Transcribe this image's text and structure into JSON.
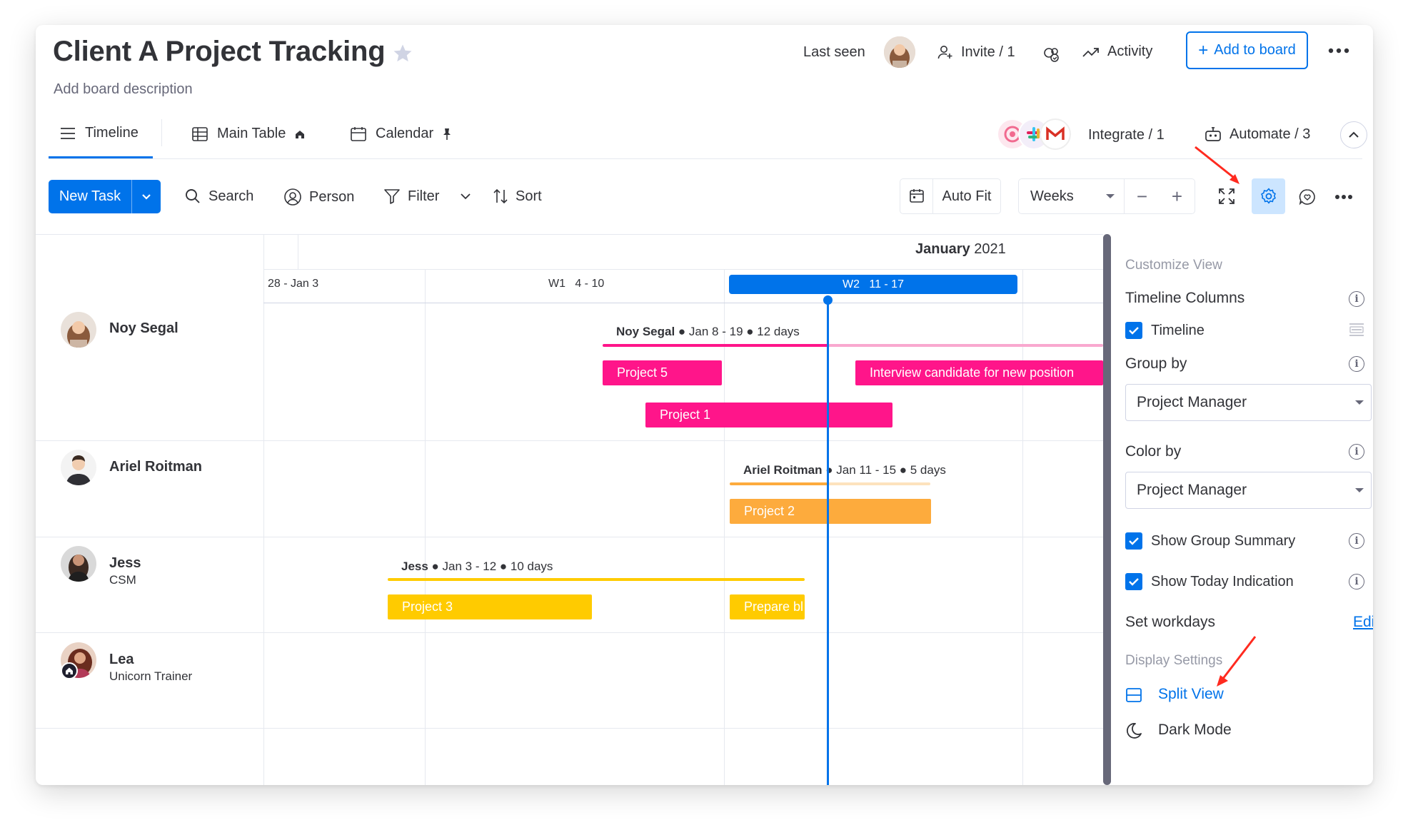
{
  "board": {
    "title": "Client A Project Tracking",
    "description": "Add board description"
  },
  "header": {
    "last_seen_label": "Last seen",
    "invite_label": "Invite / 1",
    "activity_label": "Activity",
    "add_to_board_label": "Add to board"
  },
  "tabs": [
    {
      "label": "Timeline",
      "active": true
    },
    {
      "label": "Main Table",
      "active": false
    },
    {
      "label": "Calendar",
      "active": false
    }
  ],
  "integrations": {
    "integrate_label": "Integrate / 1",
    "automate_label": "Automate / 3"
  },
  "toolbar": {
    "new_task_label": "New Task",
    "search_label": "Search",
    "person_label": "Person",
    "filter_label": "Filter",
    "sort_label": "Sort",
    "auto_fit_label": "Auto Fit",
    "scale_value": "Weeks",
    "zoom_out": "−",
    "zoom_in": "+"
  },
  "timeline": {
    "month_label": "January",
    "year_label": "2021",
    "weeks": [
      {
        "label": "28 - Jan 3",
        "current": false
      },
      {
        "label": "W1   4 - 10",
        "current": false
      },
      {
        "label": "W2   11 - 17",
        "current": true
      }
    ],
    "groups": [
      {
        "name": "Noy Segal",
        "role": "",
        "summary": {
          "name": "Noy Segal",
          "details": " ● Jan 8 - 19 ● 12 days"
        },
        "items": [
          {
            "label": "Project 5"
          },
          {
            "label": "Interview candidate for new position"
          },
          {
            "label": "Project 1"
          }
        ]
      },
      {
        "name": "Ariel Roitman",
        "role": "",
        "summary": {
          "name": "Ariel Roitman",
          "details": " ● Jan 11 - 15 ● 5 days"
        },
        "items": [
          {
            "label": "Project 2"
          }
        ]
      },
      {
        "name": "Jess",
        "role": "CSM",
        "summary": {
          "name": "Jess",
          "details": " ● Jan 3 - 12 ● 10 days"
        },
        "items": [
          {
            "label": "Project 3"
          },
          {
            "label": "Prepare bl"
          }
        ]
      },
      {
        "name": "Lea",
        "role": "Unicorn Trainer",
        "summary": null,
        "items": []
      }
    ]
  },
  "customize_panel": {
    "section_customize": "Customize View",
    "timeline_columns_label": "Timeline Columns",
    "timeline_checkbox_label": "Timeline",
    "group_by_label": "Group by",
    "group_by_value": "Project Manager",
    "color_by_label": "Color by",
    "color_by_value": "Project Manager",
    "show_group_summary_label": "Show Group Summary",
    "show_today_label": "Show Today Indication",
    "set_workdays_label": "Set workdays",
    "edit_link": "Edi",
    "section_display": "Display Settings",
    "split_view_label": "Split View",
    "dark_mode_label": "Dark Mode"
  },
  "colors": {
    "primary": "#0073ea",
    "pink": "#ff158a",
    "pink_light": "#f9a8cf",
    "orange": "#fdab3d",
    "orange_light": "#fde2bd",
    "yellow": "#ffcb00",
    "annotation_red": "#ff2a1f"
  }
}
